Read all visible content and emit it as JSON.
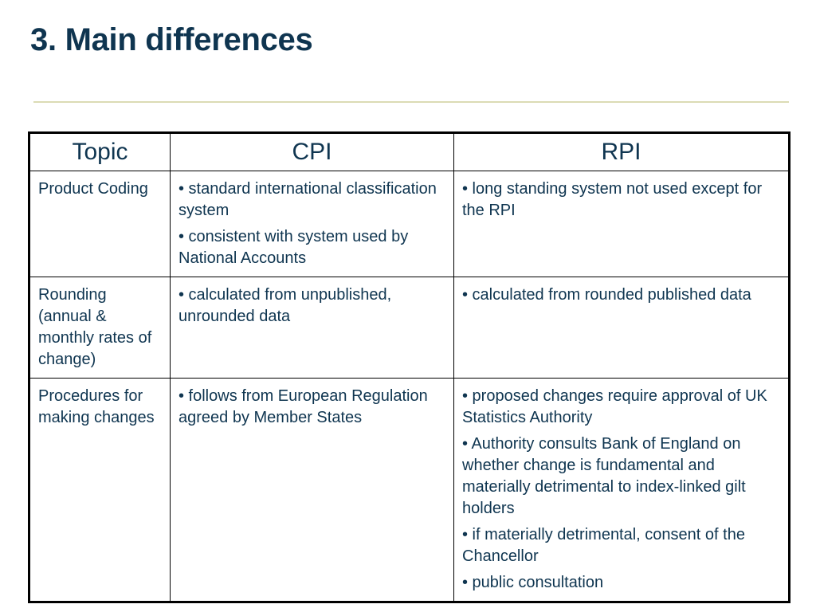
{
  "slide": {
    "title": "3. Main differences"
  },
  "table": {
    "headers": [
      "Topic",
      "CPI",
      "RPI"
    ],
    "rows": [
      {
        "topic": "Product Coding",
        "cpi": [
          "• standard international classification system",
          "• consistent with system used by National Accounts"
        ],
        "rpi": [
          "• long standing system not used except for the RPI"
        ]
      },
      {
        "topic": "Rounding (annual & monthly rates of change)",
        "cpi": [
          "• calculated from unpublished, unrounded data"
        ],
        "rpi": [
          "• calculated from rounded published data"
        ]
      },
      {
        "topic": "Procedures for making changes",
        "cpi": [
          "• follows from European Regulation agreed by Member States"
        ],
        "rpi": [
          "• proposed changes require approval of UK Statistics Authority",
          "• Authority consults Bank of England on whether change is fundamental and materially detrimental to index-linked gilt holders",
          "•  if materially detrimental, consent of the Chancellor",
          "• public consultation"
        ]
      }
    ]
  },
  "colors": {
    "text": "#0f3550",
    "rule": "#dcdcb4",
    "border": "#000000"
  }
}
